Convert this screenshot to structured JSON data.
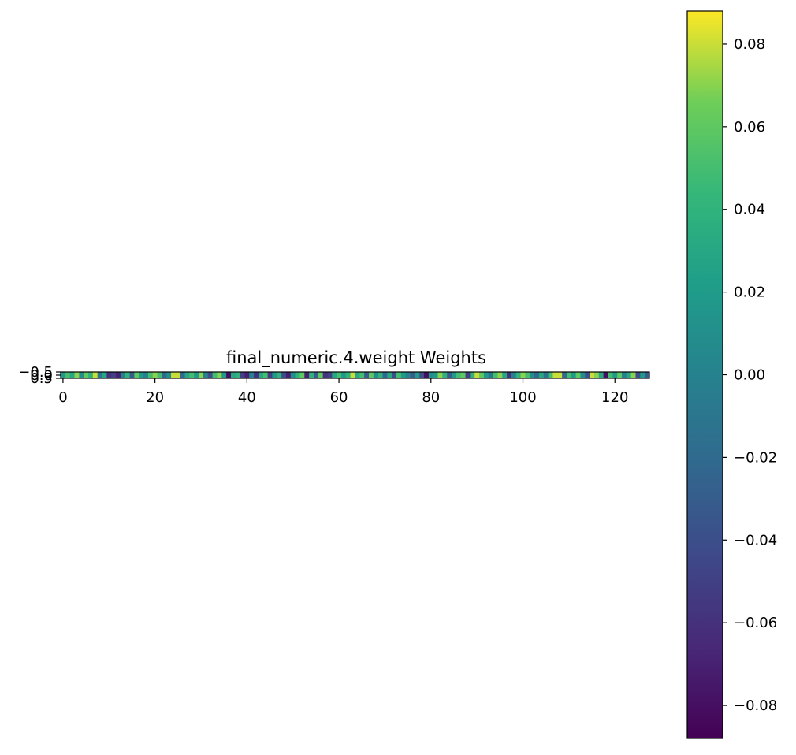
{
  "chart_data": {
    "type": "heatmap",
    "title": "final_numeric.4.weight Weights",
    "xlabel": "",
    "ylabel": "",
    "rows": 1,
    "cols": 128,
    "colormap": "viridis",
    "x_ticks": [
      0,
      20,
      40,
      60,
      80,
      100,
      120
    ],
    "y_ticks": [
      "−0.5",
      "0.0",
      "0.5"
    ],
    "xlim": [
      -0.5,
      127.5
    ],
    "ylim": [
      0.5,
      -0.5
    ],
    "grid": false,
    "colorbar": {
      "min": -0.088,
      "max": 0.088,
      "ticks": [
        0.08,
        0.06,
        0.04,
        0.02,
        0.0,
        -0.02,
        -0.04,
        -0.06,
        -0.08
      ],
      "tick_labels": [
        "0.08",
        "0.06",
        "0.04",
        "0.02",
        "0.00",
        "−0.02",
        "−0.04",
        "−0.06",
        "−0.08"
      ],
      "placement": "right"
    },
    "values": [
      [
        0.02,
        0.05,
        0.03,
        0.07,
        0.01,
        0.06,
        0.04,
        0.08,
        -0.01,
        0.03,
        -0.06,
        -0.05,
        -0.07,
        0.0,
        0.04,
        -0.03,
        0.06,
        0.02,
        0.0,
        0.05,
        0.07,
        0.05,
        -0.02,
        0.01,
        0.08,
        0.08,
        -0.02,
        0.03,
        0.05,
        0.02,
        0.07,
        0.0,
        -0.04,
        0.05,
        0.07,
        0.02,
        -0.08,
        0.03,
        0.04,
        -0.05,
        -0.07,
        0.0,
        -0.06,
        0.03,
        0.05,
        -0.05,
        0.02,
        0.04,
        -0.04,
        -0.07,
        0.01,
        0.04,
        0.06,
        -0.07,
        0.04,
        -0.03,
        0.06,
        -0.06,
        -0.05,
        0.03,
        0.05,
        0.02,
        0.04,
        0.08,
        0.03,
        0.05,
        -0.03,
        0.06,
        0.01,
        0.04,
        -0.02,
        0.03,
        -0.04,
        0.05,
        0.02,
        0.0,
        -0.03,
        0.02,
        -0.04,
        -0.08,
        0.01,
        0.02,
        0.07,
        0.04,
        -0.03,
        0.02,
        0.05,
        0.06,
        -0.05,
        0.04,
        0.08,
        0.06,
        0.02,
        -0.01,
        0.05,
        0.07,
        0.03,
        -0.06,
        0.0,
        0.04,
        0.07,
        0.05,
        0.01,
        -0.02,
        0.03,
        -0.01,
        0.05,
        0.08,
        0.08,
        -0.02,
        0.05,
        0.02,
        0.06,
        0.01,
        -0.04,
        0.08,
        0.07,
        0.03,
        -0.08,
        0.05,
        0.02,
        0.06,
        0.0,
        0.03,
        0.07,
        -0.04,
        0.02,
        -0.03
      ]
    ]
  }
}
